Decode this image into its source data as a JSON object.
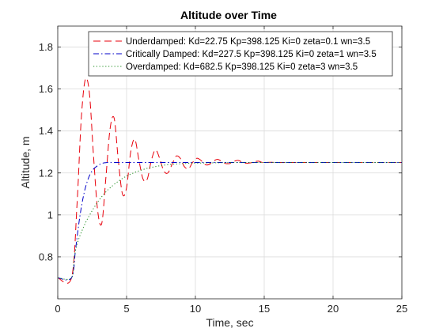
{
  "chart_data": {
    "type": "line",
    "title": "Altitude over Time",
    "xlabel": "Time, sec",
    "ylabel": "Altitude, m",
    "xlim": [
      0,
      25
    ],
    "ylim": [
      0.6,
      1.9
    ],
    "xticks": [
      0,
      5,
      10,
      15,
      20,
      25
    ],
    "yticks": [
      0.8,
      1,
      1.2,
      1.4,
      1.6,
      1.8
    ],
    "xtick_labels": [
      "0",
      "5",
      "10",
      "15",
      "20",
      "25"
    ],
    "ytick_labels": [
      "0.8",
      "1",
      "1.2",
      "1.4",
      "1.6",
      "1.8"
    ],
    "grid": true,
    "legend_position": "top-right",
    "series": [
      {
        "name": "Underdamped: Kd=22.75 Kp=398.125 Ki=0 zeta=0.1 wn=3.5",
        "color": "#e8000b",
        "style": "dashed",
        "x": [
          0,
          1,
          1.4,
          1.7,
          2.0,
          2.3,
          2.6,
          2.9,
          3.2,
          3.5,
          3.8,
          4.1,
          4.4,
          4.7,
          5.0,
          5.3,
          5.6,
          5.9,
          6.2,
          6.5,
          6.8,
          7.1,
          7.4,
          7.7,
          8.0,
          8.3,
          8.6,
          8.9,
          9.2,
          9.5,
          9.8,
          10.1,
          10.4,
          10.7,
          11.0,
          11.3,
          11.6,
          11.9,
          12.2,
          12.5,
          12.8,
          13.1,
          13.4,
          13.7,
          14.0,
          14.3,
          14.6,
          14.9,
          15.5,
          16,
          17,
          18,
          20,
          22,
          25
        ],
        "y": [
          0.7,
          0.7,
          1.05,
          1.45,
          1.645,
          1.58,
          1.28,
          1.02,
          0.96,
          1.18,
          1.41,
          1.46,
          1.26,
          1.1,
          1.13,
          1.3,
          1.36,
          1.26,
          1.17,
          1.17,
          1.26,
          1.31,
          1.27,
          1.21,
          1.2,
          1.24,
          1.28,
          1.27,
          1.23,
          1.22,
          1.25,
          1.27,
          1.26,
          1.24,
          1.24,
          1.255,
          1.265,
          1.255,
          1.245,
          1.245,
          1.255,
          1.26,
          1.252,
          1.246,
          1.248,
          1.254,
          1.256,
          1.25,
          1.251,
          1.25,
          1.25,
          1.25,
          1.25,
          1.25,
          1.25
        ]
      },
      {
        "name": "Critically Damped: Kd=227.5 Kp=398.125 Ki=0 zeta=1 wn=3.5",
        "color": "#0000c8",
        "style": "dashdot",
        "x": [
          0,
          1,
          1.3,
          1.6,
          1.9,
          2.2,
          2.5,
          2.8,
          3.2,
          3.6,
          4.0,
          4.5,
          5,
          6,
          8,
          10,
          15,
          20,
          25
        ],
        "y": [
          0.7,
          0.7,
          0.84,
          0.99,
          1.1,
          1.17,
          1.21,
          1.23,
          1.245,
          1.25,
          1.25,
          1.25,
          1.25,
          1.25,
          1.25,
          1.25,
          1.25,
          1.25,
          1.25
        ]
      },
      {
        "name": "Overdamped: Kd=682.5 Kp=398.125 Ki=0 zeta=3 wn=3.5",
        "color": "#1a8a1a",
        "style": "dotted",
        "x": [
          0,
          1,
          1.2,
          1.5,
          2.0,
          2.5,
          3.0,
          3.5,
          4.0,
          4.5,
          5.0,
          5.5,
          6.0,
          6.5,
          7.0,
          7.5,
          8.0,
          8.5,
          9.0,
          9.5,
          10.0,
          11,
          12,
          14,
          16,
          20,
          25
        ],
        "y": [
          0.7,
          0.7,
          0.8,
          0.88,
          0.96,
          1.02,
          1.07,
          1.11,
          1.14,
          1.165,
          1.185,
          1.2,
          1.212,
          1.222,
          1.229,
          1.235,
          1.239,
          1.242,
          1.244,
          1.246,
          1.247,
          1.248,
          1.249,
          1.25,
          1.25,
          1.25,
          1.25
        ]
      }
    ]
  }
}
